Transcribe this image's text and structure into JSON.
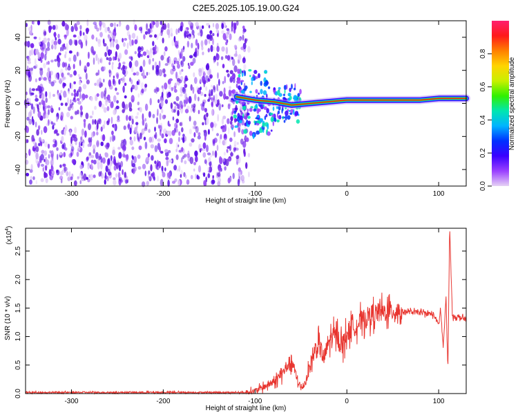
{
  "title": "C2E5.2025.105.19.00.G24",
  "colors": {
    "snr_line": "#e8352f",
    "spectrogram_scatter": "#6a1fe0",
    "frame": "#000000"
  },
  "colormap": [
    "#e6d2f5",
    "#9a40ff",
    "#3a00ff",
    "#0030ff",
    "#00b4ff",
    "#00e6b0",
    "#30f000",
    "#c8f000",
    "#ffd400",
    "#ff8000",
    "#ff1a1a",
    "#ff1f6e"
  ],
  "chart_data": [
    {
      "type": "heatmap",
      "name_hint": "spectrogram",
      "xlabel": "Height of straight line (km)",
      "ylabel": "Frequency (Hz)",
      "xlim": [
        -350,
        130
      ],
      "ylim": [
        -50,
        50
      ],
      "xticks": [
        -300,
        -200,
        -100,
        0,
        100
      ],
      "yticks": [
        -40,
        -20,
        0,
        20,
        40
      ],
      "colorbar": {
        "label": "Normalized spectral amplitude",
        "range": [
          0,
          1
        ],
        "ticks": [
          "0.0",
          "0.2",
          "0.4",
          "0.6",
          "0.8"
        ],
        "tick_values": [
          0,
          0.2,
          0.4,
          0.6,
          0.8
        ]
      },
      "noise_region_x": [
        -350,
        -105
      ],
      "carrier_trace": [
        {
          "x": -120,
          "y": 4
        },
        {
          "x": -100,
          "y": 2
        },
        {
          "x": -80,
          "y": 1
        },
        {
          "x": -60,
          "y": -1
        },
        {
          "x": -40,
          "y": 0
        },
        {
          "x": -20,
          "y": 1
        },
        {
          "x": 0,
          "y": 2
        },
        {
          "x": 20,
          "y": 2
        },
        {
          "x": 50,
          "y": 2
        },
        {
          "x": 80,
          "y": 2
        },
        {
          "x": 100,
          "y": 3
        },
        {
          "x": 110,
          "y": 3
        },
        {
          "x": 130,
          "y": 3
        }
      ]
    },
    {
      "type": "line",
      "xlabel": "Height of straight line (km)",
      "ylabel": "SNR (10 * v/v)",
      "y_multiplier": "(x10",
      "y_multiplier_exp": "4",
      "y_multiplier_close": ")",
      "xlim": [
        -350,
        130
      ],
      "ylim": [
        0,
        2.9
      ],
      "xticks": [
        -300,
        -200,
        -100,
        0,
        100
      ],
      "yticks": [
        "0.0",
        "0.5",
        "1.0",
        "1.5",
        "2.0",
        "2.5"
      ],
      "ytick_values": [
        0,
        0.5,
        1.0,
        1.5,
        2.0,
        2.5
      ],
      "series": [
        {
          "x": [
            -350,
            -300,
            -250,
            -200,
            -150,
            -110,
            -100,
            -90,
            -80,
            -70,
            -65,
            -60,
            -55,
            -50,
            -45,
            -40,
            -35,
            -30,
            -25,
            -20,
            -15,
            -10,
            -5,
            0,
            5,
            10,
            20,
            30,
            40,
            50,
            60,
            70,
            80,
            90,
            95,
            100,
            102,
            105,
            108,
            110,
            112,
            115,
            120,
            130
          ],
          "y": [
            0.02,
            0.02,
            0.02,
            0.02,
            0.02,
            0.02,
            0.05,
            0.12,
            0.2,
            0.35,
            0.5,
            0.55,
            0.3,
            0.08,
            0.2,
            0.5,
            0.75,
            0.85,
            0.6,
            0.9,
            1.0,
            1.0,
            0.85,
            1.05,
            1.15,
            1.2,
            1.32,
            1.4,
            1.43,
            1.45,
            1.44,
            1.43,
            1.42,
            1.4,
            1.38,
            1.2,
            1.5,
            0.8,
            1.7,
            0.4,
            2.9,
            1.35,
            1.35,
            1.3
          ]
        }
      ]
    }
  ]
}
